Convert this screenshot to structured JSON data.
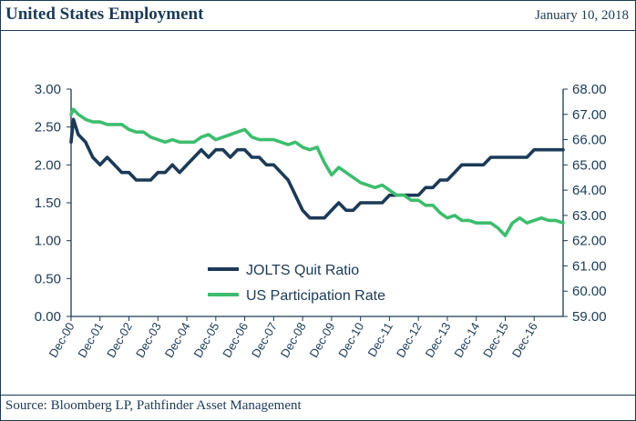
{
  "header": {
    "title": "United States Employment",
    "date": "January 10, 2018"
  },
  "footer": {
    "source": "Source: Bloomberg LP, Pathfinder Asset Management"
  },
  "colors": {
    "navy": "#1b3a57",
    "green": "#3dbd6e"
  },
  "chart_data": {
    "type": "line",
    "title": "",
    "legend_placement": "bottom-center",
    "grid": false,
    "x_range": [
      "2000-12",
      "2017-12"
    ],
    "x_tick_labels": [
      "Dec-00",
      "Dec-01",
      "Dec-02",
      "Dec-03",
      "Dec-04",
      "Dec-05",
      "Dec-06",
      "Dec-07",
      "Dec-08",
      "Dec-09",
      "Dec-10",
      "Dec-11",
      "Dec-12",
      "Dec-13",
      "Dec-14",
      "Dec-15",
      "Dec-16"
    ],
    "y_left": {
      "min": 0,
      "max": 3,
      "ticks": [
        "0.00",
        "0.50",
        "1.00",
        "1.50",
        "2.00",
        "2.50",
        "3.00"
      ]
    },
    "y_right": {
      "min": 59,
      "max": 68,
      "ticks": [
        "59.00",
        "60.00",
        "61.00",
        "62.00",
        "63.00",
        "64.00",
        "65.00",
        "66.00",
        "67.00",
        "68.00"
      ]
    },
    "series": [
      {
        "name": "JOLTS Quit Ratio",
        "axis": "left",
        "color": "#1b3a57",
        "points": [
          [
            "2000-12",
            2.3
          ],
          [
            "2001-01",
            2.6
          ],
          [
            "2001-03",
            2.4
          ],
          [
            "2001-06",
            2.3
          ],
          [
            "2001-09",
            2.1
          ],
          [
            "2001-12",
            2.0
          ],
          [
            "2002-03",
            2.1
          ],
          [
            "2002-06",
            2.0
          ],
          [
            "2002-09",
            1.9
          ],
          [
            "2002-12",
            1.9
          ],
          [
            "2003-03",
            1.8
          ],
          [
            "2003-06",
            1.8
          ],
          [
            "2003-09",
            1.8
          ],
          [
            "2003-12",
            1.9
          ],
          [
            "2004-03",
            1.9
          ],
          [
            "2004-06",
            2.0
          ],
          [
            "2004-09",
            1.9
          ],
          [
            "2004-12",
            2.0
          ],
          [
            "2005-03",
            2.1
          ],
          [
            "2005-06",
            2.2
          ],
          [
            "2005-09",
            2.1
          ],
          [
            "2005-12",
            2.2
          ],
          [
            "2006-03",
            2.2
          ],
          [
            "2006-06",
            2.1
          ],
          [
            "2006-09",
            2.2
          ],
          [
            "2006-12",
            2.2
          ],
          [
            "2007-03",
            2.1
          ],
          [
            "2007-06",
            2.1
          ],
          [
            "2007-09",
            2.0
          ],
          [
            "2007-12",
            2.0
          ],
          [
            "2008-03",
            1.9
          ],
          [
            "2008-06",
            1.8
          ],
          [
            "2008-09",
            1.6
          ],
          [
            "2008-12",
            1.4
          ],
          [
            "2009-03",
            1.3
          ],
          [
            "2009-06",
            1.3
          ],
          [
            "2009-09",
            1.3
          ],
          [
            "2009-12",
            1.4
          ],
          [
            "2010-03",
            1.5
          ],
          [
            "2010-06",
            1.4
          ],
          [
            "2010-09",
            1.4
          ],
          [
            "2010-12",
            1.5
          ],
          [
            "2011-03",
            1.5
          ],
          [
            "2011-06",
            1.5
          ],
          [
            "2011-09",
            1.5
          ],
          [
            "2011-12",
            1.6
          ],
          [
            "2012-03",
            1.6
          ],
          [
            "2012-06",
            1.6
          ],
          [
            "2012-09",
            1.6
          ],
          [
            "2012-12",
            1.6
          ],
          [
            "2013-03",
            1.7
          ],
          [
            "2013-06",
            1.7
          ],
          [
            "2013-09",
            1.8
          ],
          [
            "2013-12",
            1.8
          ],
          [
            "2014-03",
            1.9
          ],
          [
            "2014-06",
            2.0
          ],
          [
            "2014-09",
            2.0
          ],
          [
            "2014-12",
            2.0
          ],
          [
            "2015-03",
            2.0
          ],
          [
            "2015-06",
            2.1
          ],
          [
            "2015-09",
            2.1
          ],
          [
            "2015-12",
            2.1
          ],
          [
            "2016-03",
            2.1
          ],
          [
            "2016-06",
            2.1
          ],
          [
            "2016-09",
            2.1
          ],
          [
            "2016-12",
            2.2
          ],
          [
            "2017-03",
            2.2
          ],
          [
            "2017-06",
            2.2
          ],
          [
            "2017-09",
            2.2
          ],
          [
            "2017-12",
            2.2
          ]
        ]
      },
      {
        "name": "US Participation Rate",
        "axis": "right",
        "color": "#3dbd6e",
        "points": [
          [
            "2000-12",
            67.0
          ],
          [
            "2001-01",
            67.2
          ],
          [
            "2001-03",
            67.0
          ],
          [
            "2001-06",
            66.8
          ],
          [
            "2001-09",
            66.7
          ],
          [
            "2001-12",
            66.7
          ],
          [
            "2002-03",
            66.6
          ],
          [
            "2002-06",
            66.6
          ],
          [
            "2002-09",
            66.6
          ],
          [
            "2002-12",
            66.4
          ],
          [
            "2003-03",
            66.3
          ],
          [
            "2003-06",
            66.3
          ],
          [
            "2003-09",
            66.1
          ],
          [
            "2003-12",
            66.0
          ],
          [
            "2004-03",
            65.9
          ],
          [
            "2004-06",
            66.0
          ],
          [
            "2004-09",
            65.9
          ],
          [
            "2004-12",
            65.9
          ],
          [
            "2005-03",
            65.9
          ],
          [
            "2005-06",
            66.1
          ],
          [
            "2005-09",
            66.2
          ],
          [
            "2005-12",
            66.0
          ],
          [
            "2006-03",
            66.1
          ],
          [
            "2006-06",
            66.2
          ],
          [
            "2006-09",
            66.3
          ],
          [
            "2006-12",
            66.4
          ],
          [
            "2007-03",
            66.1
          ],
          [
            "2007-06",
            66.0
          ],
          [
            "2007-09",
            66.0
          ],
          [
            "2007-12",
            66.0
          ],
          [
            "2008-03",
            65.9
          ],
          [
            "2008-06",
            65.8
          ],
          [
            "2008-09",
            65.9
          ],
          [
            "2008-12",
            65.7
          ],
          [
            "2009-03",
            65.6
          ],
          [
            "2009-06",
            65.7
          ],
          [
            "2009-09",
            65.1
          ],
          [
            "2009-12",
            64.6
          ],
          [
            "2010-03",
            64.9
          ],
          [
            "2010-06",
            64.7
          ],
          [
            "2010-09",
            64.5
          ],
          [
            "2010-12",
            64.3
          ],
          [
            "2011-03",
            64.2
          ],
          [
            "2011-06",
            64.1
          ],
          [
            "2011-09",
            64.2
          ],
          [
            "2011-12",
            64.0
          ],
          [
            "2012-03",
            63.8
          ],
          [
            "2012-06",
            63.8
          ],
          [
            "2012-09",
            63.6
          ],
          [
            "2012-12",
            63.6
          ],
          [
            "2013-03",
            63.4
          ],
          [
            "2013-06",
            63.4
          ],
          [
            "2013-09",
            63.1
          ],
          [
            "2013-12",
            62.9
          ],
          [
            "2014-03",
            63.0
          ],
          [
            "2014-06",
            62.8
          ],
          [
            "2014-09",
            62.8
          ],
          [
            "2014-12",
            62.7
          ],
          [
            "2015-03",
            62.7
          ],
          [
            "2015-06",
            62.7
          ],
          [
            "2015-09",
            62.5
          ],
          [
            "2015-12",
            62.2
          ],
          [
            "2016-03",
            62.7
          ],
          [
            "2016-06",
            62.9
          ],
          [
            "2016-09",
            62.7
          ],
          [
            "2016-12",
            62.8
          ],
          [
            "2017-03",
            62.9
          ],
          [
            "2017-06",
            62.8
          ],
          [
            "2017-09",
            62.8
          ],
          [
            "2017-12",
            62.7
          ]
        ]
      }
    ]
  }
}
